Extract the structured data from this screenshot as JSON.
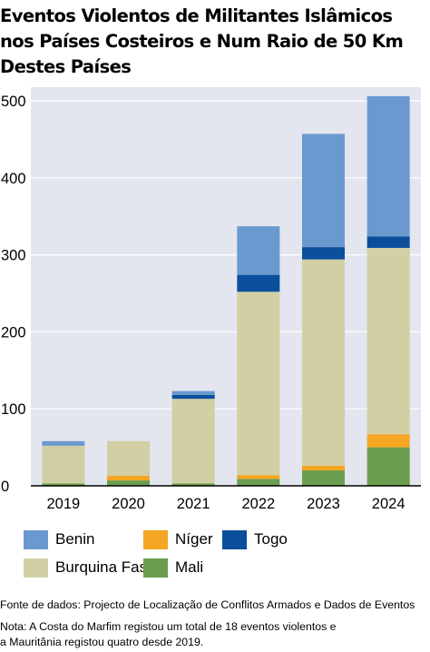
{
  "title_lines": [
    "Eventos Violentos de Militantes Islâmicos",
    "nos Países Costeiros e Num Raio de 50 Km",
    "Destes Países"
  ],
  "chart_data": {
    "type": "bar",
    "stacked": true,
    "categories": [
      "2019",
      "2020",
      "2021",
      "2022",
      "2023",
      "2024"
    ],
    "ylim": [
      0,
      500
    ],
    "yticks": [
      0,
      100,
      200,
      300,
      400,
      500
    ],
    "grid": true,
    "series": [
      {
        "name": "Mali",
        "color": "#6a9d4d",
        "values": [
          3,
          7,
          3,
          9,
          20,
          50
        ]
      },
      {
        "name": "Níger",
        "color": "#f5a623",
        "values": [
          0,
          6,
          0,
          5,
          6,
          17
        ]
      },
      {
        "name": "Burquina Faso",
        "color": "#d2cfa5",
        "values": [
          49,
          45,
          110,
          238,
          268,
          242
        ]
      },
      {
        "name": "Togo",
        "color": "#0b4f9c",
        "values": [
          0,
          0,
          5,
          22,
          16,
          15
        ]
      },
      {
        "name": "Benin",
        "color": "#6a99cf",
        "values": [
          6,
          0,
          5,
          63,
          147,
          182
        ]
      }
    ]
  },
  "legend": [
    {
      "label": "Benin",
      "color": "#6a99cf"
    },
    {
      "label": "Níger",
      "color": "#f5a623"
    },
    {
      "label": "Togo",
      "color": "#0b4f9c"
    },
    {
      "label": "Burquina Faso",
      "color": "#d2cfa5"
    },
    {
      "label": "Mali",
      "color": "#6a9d4d"
    }
  ],
  "source_note": "Fonte de dados: Projecto de Localização de Conflitos Armados e Dados de Eventos",
  "footnote_lines": [
    "Nota: A Costa do Marfim registou um total de 18 eventos violentos e",
    "a Mauritânia registou quatro desde 2019."
  ]
}
